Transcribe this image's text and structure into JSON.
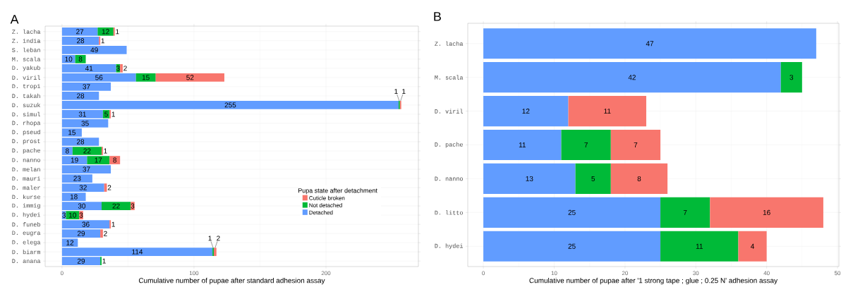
{
  "chart_data": [
    {
      "type": "bar",
      "title": "A",
      "orientation": "horizontal",
      "stacked": true,
      "data_labels": true,
      "grid": true,
      "legend": "bottom right",
      "legend_title": "Pupa state after detachment",
      "xlabel": "Cumulative number of pupae after standard adhesion assay",
      "categories": [
        "Z. lacha",
        "Z. india",
        "S. leban",
        "M. scala",
        "D. yakub",
        "D. viril",
        "D. tropi",
        "D. takah",
        "D. suzuk",
        "D. simul",
        "D. rhopa",
        "D. pseud",
        "D. prost",
        "D. pache",
        "D. nanno",
        "D. melan",
        "D. mauri",
        "D. maler",
        "D. kurse",
        "D. immig",
        "D. hydei",
        "D. funeb",
        "D. eugra",
        "D. elega",
        "D. biarm",
        "D. anana"
      ],
      "xlim": [
        -12.75,
        270
      ],
      "xticks": [
        0,
        100,
        200
      ],
      "series": [
        {
          "name": "Detached",
          "color": "#619cff",
          "values": [
            27,
            28,
            49,
            10,
            41,
            56,
            37,
            28,
            255,
            31,
            35,
            15,
            28,
            8,
            19,
            37,
            23,
            32,
            18,
            30,
            3,
            36,
            29,
            12,
            114,
            29
          ]
        },
        {
          "name": "Not detached",
          "color": "#00ba38",
          "values": [
            12,
            null,
            null,
            8,
            3,
            15,
            null,
            null,
            1,
            5,
            null,
            null,
            null,
            22,
            17,
            null,
            null,
            null,
            null,
            22,
            10,
            null,
            null,
            null,
            1,
            1
          ]
        },
        {
          "name": "Cuticle broken",
          "color": "#f8766d",
          "values": [
            1,
            1,
            null,
            null,
            2,
            52,
            null,
            null,
            1,
            1,
            null,
            null,
            null,
            1,
            8,
            null,
            null,
            2,
            null,
            3,
            3,
            1,
            2,
            null,
            2,
            null
          ]
        }
      ]
    },
    {
      "type": "bar",
      "title": "B",
      "orientation": "horizontal",
      "stacked": true,
      "data_labels": true,
      "grid": true,
      "xlabel": "Cumulative number of pupae after '1 strong tape ; glue ; 0.25 N' adhesion assay",
      "categories": [
        "Z. lacha",
        "M. scala",
        "D. viril",
        "D. pache",
        "D. nanno",
        "D. litto",
        "D. hydei"
      ],
      "xlim": [
        -2.2,
        50.2
      ],
      "xticks": [
        0,
        10,
        20,
        30,
        40,
        50
      ],
      "series": [
        {
          "color": "#619cff",
          "values": [
            47,
            42,
            12,
            11,
            13,
            25,
            25
          ]
        },
        {
          "color": "#00ba38",
          "values": [
            null,
            3,
            null,
            7,
            5,
            7,
            11
          ]
        },
        {
          "color": "#f8766d",
          "values": [
            null,
            null,
            11,
            7,
            8,
            16,
            4
          ]
        }
      ]
    }
  ]
}
